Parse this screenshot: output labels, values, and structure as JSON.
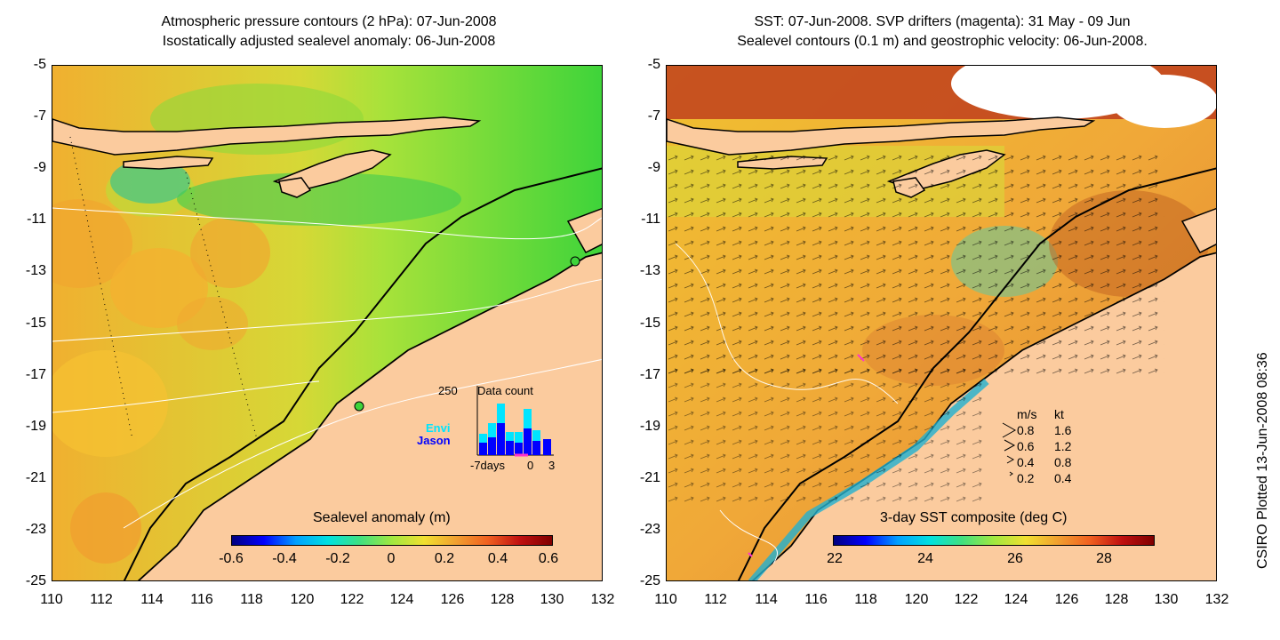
{
  "left_panel": {
    "title_line1": "Atmospheric pressure contours (2 hPa): 07-Jun-2008",
    "title_line2": "Isostatically adjusted sealevel anomaly: 06-Jun-2008",
    "colorbar_title": "Sealevel anomaly (m)",
    "colorbar_ticks": [
      "-0.6",
      "-0.4",
      "-0.2",
      "0",
      "0.2",
      "0.4",
      "0.6"
    ],
    "inset": {
      "title": "Data count",
      "ymax_label": "250",
      "series": [
        {
          "name": "Envi",
          "color": "#00e5ff"
        },
        {
          "name": "Jason",
          "color": "#0000ff"
        }
      ],
      "xlabels": [
        "-7days",
        "0",
        "3"
      ]
    }
  },
  "right_panel": {
    "title_line1": "SST: 07-Jun-2008. SVP drifters (magenta): 31 May - 09 Jun",
    "title_line2": "Sealevel contours (0.1 m) and geostrophic velocity: 06-Jun-2008.",
    "colorbar_title": "3-day SST composite (deg C)",
    "colorbar_ticks": [
      "22",
      "24",
      "26",
      "28"
    ],
    "velocity_legend": {
      "header_ms": "m/s",
      "header_kt": "kt",
      "rows": [
        {
          "ms": "0.8",
          "kt": "1.6"
        },
        {
          "ms": "0.6",
          "kt": "1.2"
        },
        {
          "ms": "0.4",
          "kt": "0.8"
        },
        {
          "ms": "0.2",
          "kt": "0.4"
        }
      ]
    }
  },
  "axes": {
    "y_ticks": [
      "-5",
      "-7",
      "-9",
      "-11",
      "-13",
      "-15",
      "-17",
      "-19",
      "-21",
      "-23",
      "-25"
    ],
    "x_ticks": [
      "110",
      "112",
      "114",
      "116",
      "118",
      "120",
      "122",
      "124",
      "126",
      "128",
      "130",
      "132"
    ]
  },
  "colors": {
    "land": "#fbcb9e",
    "sea_anomaly": "#b9e83a",
    "sea_green": "#3ed43a",
    "sst_warm": "#f2a83a",
    "drifter": "#ff33cc"
  },
  "stamp": "CSIRO Plotted 13-Jun-2008 08:36"
}
